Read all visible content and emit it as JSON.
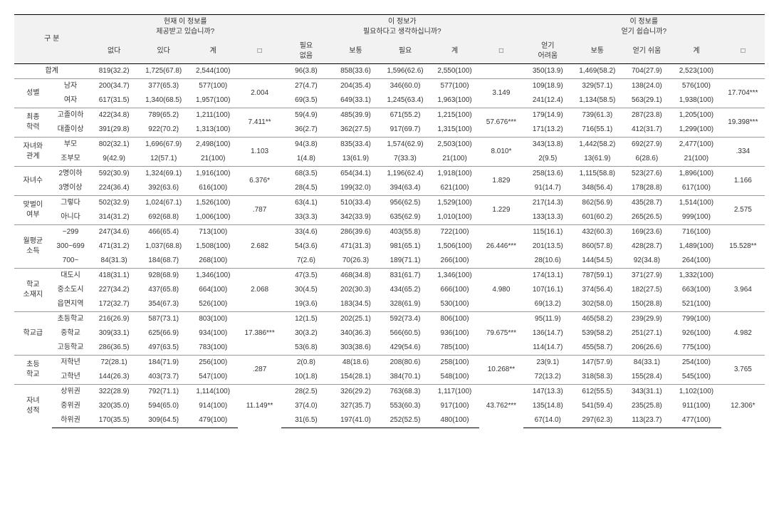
{
  "header": {
    "rowhead": "구 분",
    "group1": {
      "title": "현재 이 정보를\n제공받고 있습니까?",
      "cols": [
        "없다",
        "있다",
        "계",
        "□"
      ]
    },
    "group2": {
      "title": "이 정보가\n필요하다고 생각하십니까?",
      "cols": [
        "필요\n없음",
        "보통",
        "필요",
        "계",
        "□"
      ]
    },
    "group3": {
      "title": "이 정보를\n얻기 쉽습니까?",
      "cols": [
        "얻기\n어려움",
        "보통",
        "얻기\n쉬움",
        "계",
        "□"
      ]
    }
  },
  "sections": [
    {
      "label": "합계",
      "rows": [
        {
          "sub": "",
          "g1": [
            "819(32.2)",
            "1,725(67.8)",
            "2,544(100)"
          ],
          "g2": [
            "96(3.8)",
            "858(33.6)",
            "1,596(62.6)",
            "2,550(100)"
          ],
          "g3": [
            "350(13.9)",
            "1,469(58.2)",
            "704(27.9)",
            "2,523(100)"
          ]
        }
      ],
      "chi1": "",
      "chi2": "",
      "chi3": "",
      "labSpan": 2
    },
    {
      "label": "성별",
      "rows": [
        {
          "sub": "남자",
          "g1": [
            "200(34.7)",
            "377(65.3)",
            "577(100)"
          ],
          "g2": [
            "27(4.7)",
            "204(35.4)",
            "346(60.0)",
            "577(100)"
          ],
          "g3": [
            "109(18.9)",
            "329(57.1)",
            "138(24.0)",
            "576(100)"
          ]
        },
        {
          "sub": "여자",
          "g1": [
            "617(31.5)",
            "1,340(68.5)",
            "1,957(100)"
          ],
          "g2": [
            "69(3.5)",
            "649(33.1)",
            "1,245(63.4)",
            "1,963(100)"
          ],
          "g3": [
            "241(12.4)",
            "1,134(58.5)",
            "563(29.1)",
            "1,938(100)"
          ]
        }
      ],
      "chi1": "2.004",
      "chi2": "3.149",
      "chi3": "17.704***"
    },
    {
      "label": "최종\n학력",
      "rows": [
        {
          "sub": "고졸이하",
          "g1": [
            "422(34.8)",
            "789(65.2)",
            "1,211(100)"
          ],
          "g2": [
            "59(4.9)",
            "485(39.9)",
            "671(55.2)",
            "1,215(100)"
          ],
          "g3": [
            "179(14.9)",
            "739(61.3)",
            "287(23.8)",
            "1,205(100)"
          ]
        },
        {
          "sub": "대졸이상",
          "g1": [
            "391(29.8)",
            "922(70.2)",
            "1,313(100)"
          ],
          "g2": [
            "36(2.7)",
            "362(27.5)",
            "917(69.7)",
            "1,315(100)"
          ],
          "g3": [
            "171(13.2)",
            "716(55.1)",
            "412(31.7)",
            "1,299(100)"
          ]
        }
      ],
      "chi1": "7.411**",
      "chi2": "57.676***",
      "chi3": "19.398***"
    },
    {
      "label": "자녀와\n관계",
      "rows": [
        {
          "sub": "부모",
          "g1": [
            "802(32.1)",
            "1,696(67.9)",
            "2,498(100)"
          ],
          "g2": [
            "94(3.8)",
            "835(33.4)",
            "1,574(62.9)",
            "2,503(100)"
          ],
          "g3": [
            "343(13.8)",
            "1,442(58.2)",
            "692(27.9)",
            "2,477(100)"
          ]
        },
        {
          "sub": "조부모",
          "g1": [
            "9(42.9)",
            "12(57.1)",
            "21(100)"
          ],
          "g2": [
            "1(4.8)",
            "13(61.9)",
            "7(33.3)",
            "21(100)"
          ],
          "g3": [
            "2(9.5)",
            "13(61.9)",
            "6(28.6)",
            "21(100)"
          ]
        }
      ],
      "chi1": "1.103",
      "chi2": "8.010*",
      "chi3": ".334"
    },
    {
      "label": "자녀수",
      "rows": [
        {
          "sub": "2명이하",
          "g1": [
            "592(30.9)",
            "1,324(69.1)",
            "1,916(100)"
          ],
          "g2": [
            "68(3.5)",
            "654(34.1)",
            "1,196(62.4)",
            "1,918(100)"
          ],
          "g3": [
            "258(13.6)",
            "1,115(58.8)",
            "523(27.6)",
            "1,896(100)"
          ]
        },
        {
          "sub": "3명이상",
          "g1": [
            "224(36.4)",
            "392(63.6)",
            "616(100)"
          ],
          "g2": [
            "28(4.5)",
            "199(32.0)",
            "394(63.4)",
            "621(100)"
          ],
          "g3": [
            "91(14.7)",
            "348(56.4)",
            "178(28.8)",
            "617(100)"
          ]
        }
      ],
      "chi1": "6.376*",
      "chi2": "1.829",
      "chi3": "1.166"
    },
    {
      "label": "맞벌이\n여부",
      "rows": [
        {
          "sub": "그렇다",
          "g1": [
            "502(32.9)",
            "1,024(67.1)",
            "1,526(100)"
          ],
          "g2": [
            "63(4.1)",
            "510(33.4)",
            "956(62.5)",
            "1,529(100)"
          ],
          "g3": [
            "217(14.3)",
            "862(56.9)",
            "435(28.7)",
            "1,514(100)"
          ]
        },
        {
          "sub": "아니다",
          "g1": [
            "314(31.2)",
            "692(68.8)",
            "1,006(100)"
          ],
          "g2": [
            "33(3.3)",
            "342(33.9)",
            "635(62.9)",
            "1,010(100)"
          ],
          "g3": [
            "133(13.3)",
            "601(60.2)",
            "265(26.5)",
            "999(100)"
          ]
        }
      ],
      "chi1": ".787",
      "chi2": "1.229",
      "chi3": "2.575"
    },
    {
      "label": "월평균\n소득",
      "rows": [
        {
          "sub": "~299",
          "g1": [
            "247(34.6)",
            "466(65.4)",
            "713(100)"
          ],
          "g2": [
            "33(4.6)",
            "286(39.6)",
            "403(55.8)",
            "722(100)"
          ],
          "g3": [
            "115(16.1)",
            "432(60.3)",
            "169(23.6)",
            "716(100)"
          ]
        },
        {
          "sub": "300~699",
          "g1": [
            "471(31.2)",
            "1,037(68.8)",
            "1,508(100)"
          ],
          "g2": [
            "54(3.6)",
            "471(31.3)",
            "981(65.1)",
            "1,506(100)"
          ],
          "g3": [
            "201(13.5)",
            "860(57.8)",
            "428(28.7)",
            "1,489(100)"
          ]
        },
        {
          "sub": "700~",
          "g1": [
            "84(31.3)",
            "184(68.7)",
            "268(100)"
          ],
          "g2": [
            "7(2.6)",
            "70(26.3)",
            "189(71.1)",
            "266(100)"
          ],
          "g3": [
            "28(10.6)",
            "144(54.5)",
            "92(34.8)",
            "264(100)"
          ]
        }
      ],
      "chi1": "2.682",
      "chi2": "26.446***",
      "chi3": "15.528**"
    },
    {
      "label": "학교\n소재지",
      "rows": [
        {
          "sub": "대도시",
          "g1": [
            "418(31.1)",
            "928(68.9)",
            "1,346(100)"
          ],
          "g2": [
            "47(3.5)",
            "468(34.8)",
            "831(61.7)",
            "1,346(100)"
          ],
          "g3": [
            "174(13.1)",
            "787(59.1)",
            "371(27.9)",
            "1,332(100)"
          ]
        },
        {
          "sub": "중소도시",
          "g1": [
            "227(34.2)",
            "437(65.8)",
            "664(100)"
          ],
          "g2": [
            "30(4.5)",
            "202(30.3)",
            "434(65.2)",
            "666(100)"
          ],
          "g3": [
            "107(16.1)",
            "374(56.4)",
            "182(27.5)",
            "663(100)"
          ]
        },
        {
          "sub": "읍면지역",
          "g1": [
            "172(32.7)",
            "354(67.3)",
            "526(100)"
          ],
          "g2": [
            "19(3.6)",
            "183(34.5)",
            "328(61.9)",
            "530(100)"
          ],
          "g3": [
            "69(13.2)",
            "302(58.0)",
            "150(28.8)",
            "521(100)"
          ]
        }
      ],
      "chi1": "2.068",
      "chi2": "4.980",
      "chi3": "3.964"
    },
    {
      "label": "학교급",
      "rows": [
        {
          "sub": "초등학교",
          "g1": [
            "216(26.9)",
            "587(73.1)",
            "803(100)"
          ],
          "g2": [
            "12(1.5)",
            "202(25.1)",
            "592(73.4)",
            "806(100)"
          ],
          "g3": [
            "95(11.9)",
            "465(58.2)",
            "239(29.9)",
            "799(100)"
          ]
        },
        {
          "sub": "중학교",
          "g1": [
            "309(33.1)",
            "625(66.9)",
            "934(100)"
          ],
          "g2": [
            "30(3.2)",
            "340(36.3)",
            "566(60.5)",
            "936(100)"
          ],
          "g3": [
            "136(14.7)",
            "539(58.2)",
            "251(27.1)",
            "926(100)"
          ]
        },
        {
          "sub": "고등학교",
          "g1": [
            "286(36.5)",
            "497(63.5)",
            "783(100)"
          ],
          "g2": [
            "53(6.8)",
            "303(38.6)",
            "429(54.6)",
            "785(100)"
          ],
          "g3": [
            "114(14.7)",
            "455(58.7)",
            "206(26.6)",
            "775(100)"
          ]
        }
      ],
      "chi1": "17.386***",
      "chi2": "79.675***",
      "chi3": "4.982"
    },
    {
      "label": "초등\n학교",
      "rows": [
        {
          "sub": "저학년",
          "g1": [
            "72(28.1)",
            "184(71.9)",
            "256(100)"
          ],
          "g2": [
            "2(0.8)",
            "48(18.6)",
            "208(80.6)",
            "258(100)"
          ],
          "g3": [
            "23(9.1)",
            "147(57.9)",
            "84(33.1)",
            "254(100)"
          ]
        },
        {
          "sub": "고학년",
          "g1": [
            "144(26.3)",
            "403(73.7)",
            "547(100)"
          ],
          "g2": [
            "10(1.8)",
            "154(28.1)",
            "384(70.1)",
            "548(100)"
          ],
          "g3": [
            "72(13.2)",
            "318(58.3)",
            "155(28.4)",
            "545(100)"
          ]
        }
      ],
      "chi1": ".287",
      "chi2": "10.268**",
      "chi3": "3.765"
    },
    {
      "label": "자녀\n성적",
      "rows": [
        {
          "sub": "상위권",
          "g1": [
            "322(28.9)",
            "792(71.1)",
            "1,114(100)"
          ],
          "g2": [
            "28(2.5)",
            "326(29.2)",
            "763(68.3)",
            "1,117(100)"
          ],
          "g3": [
            "147(13.3)",
            "612(55.5)",
            "343(31.1)",
            "1,102(100)"
          ]
        },
        {
          "sub": "중위권",
          "g1": [
            "320(35.0)",
            "594(65.0)",
            "914(100)"
          ],
          "g2": [
            "37(4.0)",
            "327(35.7)",
            "553(60.3)",
            "917(100)"
          ],
          "g3": [
            "135(14.8)",
            "541(59.4)",
            "235(25.8)",
            "911(100)"
          ]
        },
        {
          "sub": "하위권",
          "g1": [
            "170(35.5)",
            "309(64.5)",
            "479(100)"
          ],
          "g2": [
            "31(6.5)",
            "197(41.0)",
            "252(52.5)",
            "480(100)"
          ],
          "g3": [
            "67(14.0)",
            "297(62.3)",
            "113(23.7)",
            "477(100)"
          ]
        }
      ],
      "chi1": "11.149**",
      "chi2": "43.762***",
      "chi3": "12.306*"
    }
  ]
}
